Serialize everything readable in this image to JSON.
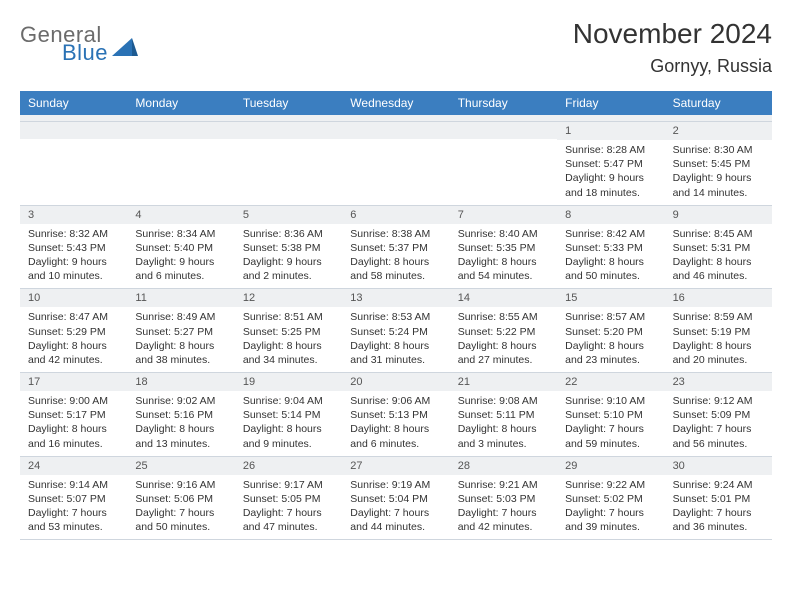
{
  "brand": {
    "line1": "General",
    "line2": "Blue"
  },
  "title": "November 2024",
  "location": "Gornyy, Russia",
  "colors": {
    "header_bg": "#3b7ec0",
    "header_text": "#ffffff",
    "datebar_bg": "#eef0f2",
    "datebar_text": "#555555",
    "body_text": "#333333",
    "divider": "#cfd6de",
    "logo_gray": "#6b6b6b",
    "logo_blue": "#2a72b5"
  },
  "dayNames": [
    "Sunday",
    "Monday",
    "Tuesday",
    "Wednesday",
    "Thursday",
    "Friday",
    "Saturday"
  ],
  "weeks": [
    [
      {
        "empty": true
      },
      {
        "empty": true
      },
      {
        "empty": true
      },
      {
        "empty": true
      },
      {
        "empty": true
      },
      {
        "date": "1",
        "sunrise": "Sunrise: 8:28 AM",
        "sunset": "Sunset: 5:47 PM",
        "day1": "Daylight: 9 hours",
        "day2": "and 18 minutes."
      },
      {
        "date": "2",
        "sunrise": "Sunrise: 8:30 AM",
        "sunset": "Sunset: 5:45 PM",
        "day1": "Daylight: 9 hours",
        "day2": "and 14 minutes."
      }
    ],
    [
      {
        "date": "3",
        "sunrise": "Sunrise: 8:32 AM",
        "sunset": "Sunset: 5:43 PM",
        "day1": "Daylight: 9 hours",
        "day2": "and 10 minutes."
      },
      {
        "date": "4",
        "sunrise": "Sunrise: 8:34 AM",
        "sunset": "Sunset: 5:40 PM",
        "day1": "Daylight: 9 hours",
        "day2": "and 6 minutes."
      },
      {
        "date": "5",
        "sunrise": "Sunrise: 8:36 AM",
        "sunset": "Sunset: 5:38 PM",
        "day1": "Daylight: 9 hours",
        "day2": "and 2 minutes."
      },
      {
        "date": "6",
        "sunrise": "Sunrise: 8:38 AM",
        "sunset": "Sunset: 5:37 PM",
        "day1": "Daylight: 8 hours",
        "day2": "and 58 minutes."
      },
      {
        "date": "7",
        "sunrise": "Sunrise: 8:40 AM",
        "sunset": "Sunset: 5:35 PM",
        "day1": "Daylight: 8 hours",
        "day2": "and 54 minutes."
      },
      {
        "date": "8",
        "sunrise": "Sunrise: 8:42 AM",
        "sunset": "Sunset: 5:33 PM",
        "day1": "Daylight: 8 hours",
        "day2": "and 50 minutes."
      },
      {
        "date": "9",
        "sunrise": "Sunrise: 8:45 AM",
        "sunset": "Sunset: 5:31 PM",
        "day1": "Daylight: 8 hours",
        "day2": "and 46 minutes."
      }
    ],
    [
      {
        "date": "10",
        "sunrise": "Sunrise: 8:47 AM",
        "sunset": "Sunset: 5:29 PM",
        "day1": "Daylight: 8 hours",
        "day2": "and 42 minutes."
      },
      {
        "date": "11",
        "sunrise": "Sunrise: 8:49 AM",
        "sunset": "Sunset: 5:27 PM",
        "day1": "Daylight: 8 hours",
        "day2": "and 38 minutes."
      },
      {
        "date": "12",
        "sunrise": "Sunrise: 8:51 AM",
        "sunset": "Sunset: 5:25 PM",
        "day1": "Daylight: 8 hours",
        "day2": "and 34 minutes."
      },
      {
        "date": "13",
        "sunrise": "Sunrise: 8:53 AM",
        "sunset": "Sunset: 5:24 PM",
        "day1": "Daylight: 8 hours",
        "day2": "and 31 minutes."
      },
      {
        "date": "14",
        "sunrise": "Sunrise: 8:55 AM",
        "sunset": "Sunset: 5:22 PM",
        "day1": "Daylight: 8 hours",
        "day2": "and 27 minutes."
      },
      {
        "date": "15",
        "sunrise": "Sunrise: 8:57 AM",
        "sunset": "Sunset: 5:20 PM",
        "day1": "Daylight: 8 hours",
        "day2": "and 23 minutes."
      },
      {
        "date": "16",
        "sunrise": "Sunrise: 8:59 AM",
        "sunset": "Sunset: 5:19 PM",
        "day1": "Daylight: 8 hours",
        "day2": "and 20 minutes."
      }
    ],
    [
      {
        "date": "17",
        "sunrise": "Sunrise: 9:00 AM",
        "sunset": "Sunset: 5:17 PM",
        "day1": "Daylight: 8 hours",
        "day2": "and 16 minutes."
      },
      {
        "date": "18",
        "sunrise": "Sunrise: 9:02 AM",
        "sunset": "Sunset: 5:16 PM",
        "day1": "Daylight: 8 hours",
        "day2": "and 13 minutes."
      },
      {
        "date": "19",
        "sunrise": "Sunrise: 9:04 AM",
        "sunset": "Sunset: 5:14 PM",
        "day1": "Daylight: 8 hours",
        "day2": "and 9 minutes."
      },
      {
        "date": "20",
        "sunrise": "Sunrise: 9:06 AM",
        "sunset": "Sunset: 5:13 PM",
        "day1": "Daylight: 8 hours",
        "day2": "and 6 minutes."
      },
      {
        "date": "21",
        "sunrise": "Sunrise: 9:08 AM",
        "sunset": "Sunset: 5:11 PM",
        "day1": "Daylight: 8 hours",
        "day2": "and 3 minutes."
      },
      {
        "date": "22",
        "sunrise": "Sunrise: 9:10 AM",
        "sunset": "Sunset: 5:10 PM",
        "day1": "Daylight: 7 hours",
        "day2": "and 59 minutes."
      },
      {
        "date": "23",
        "sunrise": "Sunrise: 9:12 AM",
        "sunset": "Sunset: 5:09 PM",
        "day1": "Daylight: 7 hours",
        "day2": "and 56 minutes."
      }
    ],
    [
      {
        "date": "24",
        "sunrise": "Sunrise: 9:14 AM",
        "sunset": "Sunset: 5:07 PM",
        "day1": "Daylight: 7 hours",
        "day2": "and 53 minutes."
      },
      {
        "date": "25",
        "sunrise": "Sunrise: 9:16 AM",
        "sunset": "Sunset: 5:06 PM",
        "day1": "Daylight: 7 hours",
        "day2": "and 50 minutes."
      },
      {
        "date": "26",
        "sunrise": "Sunrise: 9:17 AM",
        "sunset": "Sunset: 5:05 PM",
        "day1": "Daylight: 7 hours",
        "day2": "and 47 minutes."
      },
      {
        "date": "27",
        "sunrise": "Sunrise: 9:19 AM",
        "sunset": "Sunset: 5:04 PM",
        "day1": "Daylight: 7 hours",
        "day2": "and 44 minutes."
      },
      {
        "date": "28",
        "sunrise": "Sunrise: 9:21 AM",
        "sunset": "Sunset: 5:03 PM",
        "day1": "Daylight: 7 hours",
        "day2": "and 42 minutes."
      },
      {
        "date": "29",
        "sunrise": "Sunrise: 9:22 AM",
        "sunset": "Sunset: 5:02 PM",
        "day1": "Daylight: 7 hours",
        "day2": "and 39 minutes."
      },
      {
        "date": "30",
        "sunrise": "Sunrise: 9:24 AM",
        "sunset": "Sunset: 5:01 PM",
        "day1": "Daylight: 7 hours",
        "day2": "and 36 minutes."
      }
    ]
  ]
}
